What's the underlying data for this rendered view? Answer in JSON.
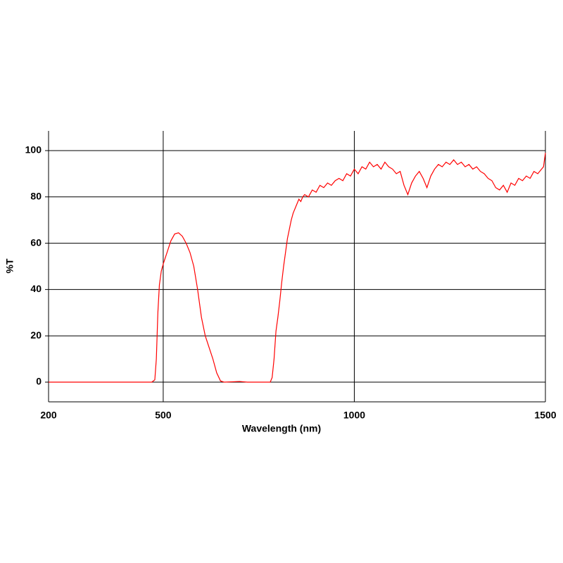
{
  "chart_data": {
    "type": "line",
    "x_label": "Wavelength (nm)",
    "y_label": "%T",
    "xlim": [
      200,
      1500
    ],
    "ylim": [
      -8.5,
      108.5
    ],
    "xticks": [
      200,
      500,
      1000,
      1500
    ],
    "yticks": [
      0,
      20,
      40,
      60,
      80,
      100
    ],
    "grid": true,
    "series": [
      {
        "name": "%T",
        "color": "#ff0000",
        "x": [
          200,
          300,
          400,
          470,
          478,
          482,
          486,
          490,
          495,
          500,
          510,
          520,
          530,
          540,
          550,
          560,
          570,
          580,
          590,
          600,
          610,
          620,
          630,
          640,
          650,
          660,
          700,
          720,
          780,
          785,
          790,
          795,
          800,
          805,
          810,
          815,
          820,
          825,
          830,
          835,
          840,
          845,
          850,
          855,
          860,
          865,
          870,
          880,
          890,
          900,
          910,
          920,
          930,
          940,
          950,
          960,
          970,
          980,
          990,
          1000,
          1010,
          1020,
          1030,
          1040,
          1050,
          1060,
          1070,
          1080,
          1090,
          1100,
          1110,
          1120,
          1130,
          1140,
          1150,
          1160,
          1170,
          1180,
          1190,
          1200,
          1210,
          1220,
          1230,
          1240,
          1250,
          1260,
          1270,
          1280,
          1290,
          1300,
          1310,
          1320,
          1330,
          1340,
          1350,
          1360,
          1370,
          1380,
          1390,
          1400,
          1410,
          1420,
          1430,
          1440,
          1450,
          1460,
          1470,
          1480,
          1490,
          1495,
          1500
        ],
        "values": [
          0,
          0,
          0,
          0,
          1,
          10,
          30,
          42,
          48,
          51,
          56,
          61,
          64,
          64.5,
          63,
          60,
          56,
          50,
          40,
          28,
          20,
          15,
          10,
          4,
          0.5,
          0,
          0.3,
          0,
          0,
          2,
          10,
          22,
          28,
          35,
          43,
          50,
          56,
          62,
          66,
          70,
          73,
          75,
          77,
          79,
          78,
          80,
          81,
          80,
          83,
          82,
          85,
          84,
          86,
          85,
          87,
          88,
          87,
          90,
          89,
          92,
          90,
          93,
          92,
          95,
          93,
          94,
          92,
          95,
          93,
          92,
          90,
          91,
          85,
          81,
          86,
          89,
          91,
          88,
          84,
          89,
          92,
          94,
          93,
          95,
          94,
          96,
          94,
          95,
          93,
          94,
          92,
          93,
          91,
          90,
          88,
          87,
          84,
          83,
          85,
          82,
          86,
          85,
          88,
          87,
          89,
          88,
          91,
          90,
          92,
          93,
          99
        ]
      }
    ]
  }
}
